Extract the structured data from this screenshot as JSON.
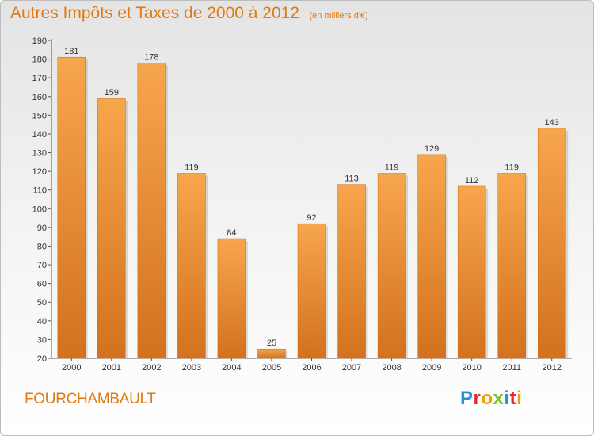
{
  "header": {
    "title": "Autres Impôts et Taxes de 2000 à 2012",
    "subtitle": "(en milliers d'€)"
  },
  "footer": {
    "town": "FOURCHAMBAULT",
    "brand": "Proxiti",
    "brand_colors": [
      "#2a8fd6",
      "#e8242e",
      "#f0a000",
      "#7bbf2a",
      "#2a8fd6",
      "#e8242e",
      "#f0a000"
    ]
  },
  "colors": {
    "bar_light": "#f7a64d",
    "bar_dark": "#d2721c",
    "text": "#333333",
    "accent": "#e07a10"
  },
  "chart_data": {
    "type": "bar",
    "title": "Autres Impôts et Taxes de 2000 à 2012",
    "subtitle": "(en milliers d'€)",
    "categories": [
      "2000",
      "2001",
      "2002",
      "2003",
      "2004",
      "2005",
      "2006",
      "2007",
      "2008",
      "2009",
      "2010",
      "2011",
      "2012"
    ],
    "values": [
      181,
      159,
      178,
      119,
      84,
      25,
      92,
      113,
      119,
      129,
      112,
      119,
      143
    ],
    "ylim": [
      20,
      190
    ],
    "yticks": [
      20,
      30,
      40,
      50,
      60,
      70,
      80,
      90,
      100,
      110,
      120,
      130,
      140,
      150,
      160,
      170,
      180,
      190
    ],
    "grid": false,
    "data_labels": true
  }
}
